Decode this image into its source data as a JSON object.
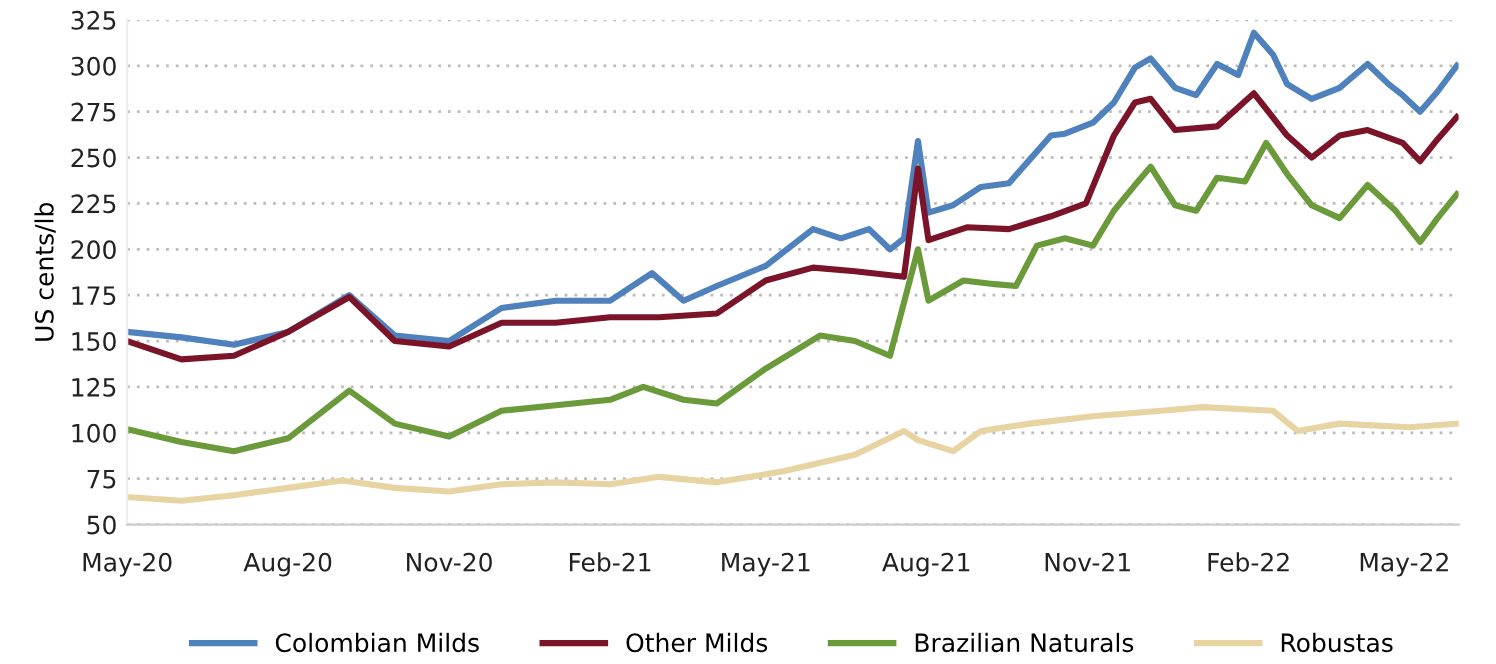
{
  "chart_data": {
    "type": "line",
    "ylabel": "US cents/lb",
    "ylim": [
      50,
      325
    ],
    "yticks": [
      50,
      75,
      100,
      125,
      150,
      175,
      200,
      225,
      250,
      275,
      300,
      325
    ],
    "xlim": [
      "2020-05-01",
      "2022-06-01"
    ],
    "xticks": [
      {
        "value": "2020-05-01",
        "label": "May-20"
      },
      {
        "value": "2020-08-01",
        "label": "Aug-20"
      },
      {
        "value": "2020-11-01",
        "label": "Nov-20"
      },
      {
        "value": "2021-02-01",
        "label": "Feb-21"
      },
      {
        "value": "2021-05-01",
        "label": "May-21"
      },
      {
        "value": "2021-08-01",
        "label": "Aug-21"
      },
      {
        "value": "2021-11-01",
        "label": "Nov-21"
      },
      {
        "value": "2022-02-01",
        "label": "Feb-22"
      },
      {
        "value": "2022-05-01",
        "label": "May-22"
      }
    ],
    "grid": "y",
    "legend": "bottom",
    "line_style": "solid",
    "marker": "none",
    "series": [
      {
        "name": "Colombian Milds",
        "color": "#4f81bd",
        "x": [
          "2020-05-01",
          "2020-06-01",
          "2020-07-01",
          "2020-08-01",
          "2020-09-05",
          "2020-10-01",
          "2020-11-01",
          "2020-12-01",
          "2021-01-01",
          "2021-02-01",
          "2021-02-25",
          "2021-03-15",
          "2021-04-03",
          "2021-05-01",
          "2021-05-28",
          "2021-06-13",
          "2021-06-29",
          "2021-07-11",
          "2021-07-19",
          "2021-07-27",
          "2021-08-02",
          "2021-08-16",
          "2021-09-01",
          "2021-09-17",
          "2021-09-29",
          "2021-10-11",
          "2021-10-19",
          "2021-11-04",
          "2021-11-16",
          "2021-11-28",
          "2021-12-07",
          "2021-12-21",
          "2022-01-02",
          "2022-01-14",
          "2022-01-26",
          "2022-02-04",
          "2022-02-15",
          "2022-02-23",
          "2022-03-09",
          "2022-03-25",
          "2022-04-10",
          "2022-04-22",
          "2022-04-30",
          "2022-05-10",
          "2022-05-20",
          "2022-05-31"
        ],
        "values": [
          155,
          152,
          148,
          155,
          175,
          153,
          150,
          168,
          172,
          172,
          187,
          172,
          180,
          191,
          211,
          206,
          211,
          200,
          206,
          259,
          220,
          224,
          234,
          236,
          249,
          262,
          263,
          269,
          280,
          299,
          304,
          288,
          284,
          301,
          295,
          318,
          306,
          290,
          282,
          288,
          301,
          290,
          284,
          275,
          286,
          300
        ]
      },
      {
        "name": "Other Milds",
        "color": "#7b1428",
        "x": [
          "2020-05-01",
          "2020-06-01",
          "2020-07-01",
          "2020-08-01",
          "2020-09-05",
          "2020-10-01",
          "2020-11-01",
          "2020-12-01",
          "2021-01-01",
          "2021-02-01",
          "2021-03-01",
          "2021-04-03",
          "2021-05-01",
          "2021-05-28",
          "2021-06-21",
          "2021-07-19",
          "2021-07-27",
          "2021-08-02",
          "2021-08-24",
          "2021-09-17",
          "2021-10-11",
          "2021-10-31",
          "2021-11-16",
          "2021-11-28",
          "2021-12-07",
          "2021-12-21",
          "2022-01-14",
          "2022-02-04",
          "2022-02-23",
          "2022-03-09",
          "2022-03-25",
          "2022-04-10",
          "2022-04-30",
          "2022-05-10",
          "2022-05-20",
          "2022-05-31"
        ],
        "values": [
          150,
          140,
          142,
          155,
          174,
          150,
          147,
          160,
          160,
          163,
          163,
          165,
          183,
          190,
          188,
          185,
          244,
          205,
          212,
          211,
          218,
          225,
          262,
          280,
          282,
          265,
          267,
          285,
          262,
          250,
          262,
          265,
          258,
          248,
          260,
          272
        ]
      },
      {
        "name": "Brazilian Naturals",
        "color": "#6b9a3a",
        "x": [
          "2020-05-01",
          "2020-06-01",
          "2020-07-01",
          "2020-08-01",
          "2020-09-05",
          "2020-10-01",
          "2020-11-01",
          "2020-12-01",
          "2021-01-01",
          "2021-02-01",
          "2021-02-20",
          "2021-03-15",
          "2021-04-03",
          "2021-05-01",
          "2021-06-01",
          "2021-06-21",
          "2021-07-11",
          "2021-07-27",
          "2021-08-02",
          "2021-08-22",
          "2021-09-09",
          "2021-09-21",
          "2021-10-03",
          "2021-10-19",
          "2021-11-04",
          "2021-11-16",
          "2021-11-28",
          "2021-12-07",
          "2021-12-21",
          "2022-01-02",
          "2022-01-14",
          "2022-01-30",
          "2022-02-11",
          "2022-02-23",
          "2022-03-09",
          "2022-03-25",
          "2022-04-10",
          "2022-04-26",
          "2022-05-10",
          "2022-05-20",
          "2022-05-31"
        ],
        "values": [
          102,
          95,
          90,
          97,
          123,
          105,
          98,
          112,
          115,
          118,
          125,
          118,
          116,
          135,
          153,
          150,
          142,
          200,
          172,
          183,
          181,
          180,
          202,
          206,
          202,
          221,
          235,
          245,
          224,
          221,
          239,
          237,
          258,
          241,
          224,
          217,
          235,
          221,
          204,
          217,
          230
        ]
      },
      {
        "name": "Robustas",
        "color": "#e8d3a2",
        "x": [
          "2020-05-01",
          "2020-06-01",
          "2020-07-01",
          "2020-08-01",
          "2020-09-01",
          "2020-10-01",
          "2020-11-01",
          "2020-12-01",
          "2021-01-01",
          "2021-02-01",
          "2021-03-01",
          "2021-04-03",
          "2021-05-11",
          "2021-06-21",
          "2021-07-19",
          "2021-07-27",
          "2021-08-16",
          "2021-09-01",
          "2021-09-29",
          "2021-11-04",
          "2021-12-13",
          "2022-01-06",
          "2022-02-15",
          "2022-03-01",
          "2022-03-25",
          "2022-05-04",
          "2022-05-31"
        ],
        "values": [
          65,
          63,
          66,
          70,
          74,
          70,
          68,
          72,
          73,
          72,
          76,
          73,
          79,
          88,
          101,
          96,
          90,
          101,
          105,
          109,
          112,
          114,
          112,
          101,
          105,
          103,
          105
        ]
      }
    ]
  }
}
